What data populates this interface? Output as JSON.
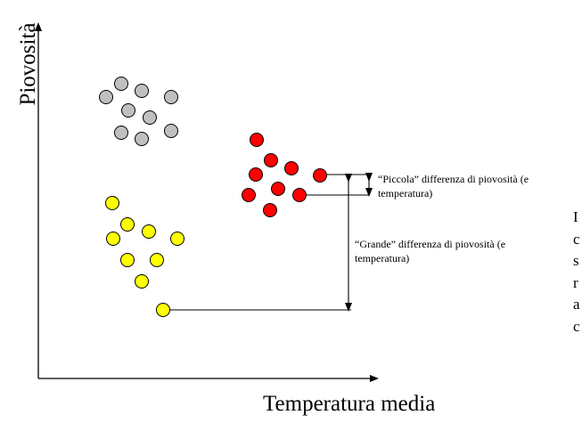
{
  "axes": {
    "y_label": "Piovosità",
    "x_label": "Temperatura media"
  },
  "annotations": {
    "small_difference": {
      "line1": "“Piccola” differenza di piovosità (e",
      "line2": "temperatura)"
    },
    "large_difference": {
      "line1": "“Grande” differenza di piovosità (e",
      "line2": "temperatura)"
    }
  },
  "side_text_fragment": [
    "I",
    "c",
    "s",
    "r",
    "a",
    "c"
  ],
  "clusters": [
    {
      "name": "gray-cluster",
      "color": "#c0c0c0",
      "count": 9
    },
    {
      "name": "red-cluster",
      "color": "#ff0000",
      "count": 9
    },
    {
      "name": "yellow-cluster",
      "color": "#ffff00",
      "count": 9
    }
  ]
}
